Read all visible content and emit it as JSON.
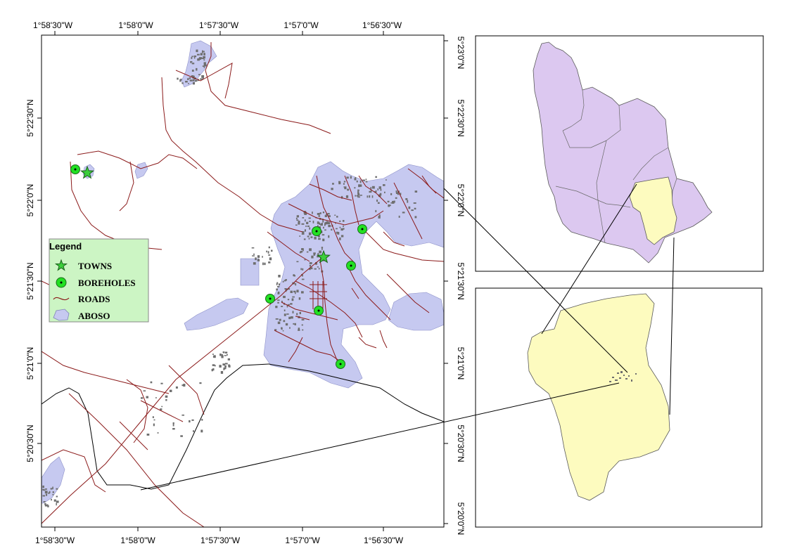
{
  "main_map": {
    "top_ticks": [
      "1°58'30\"W",
      "1°58'0\"W",
      "1°57'30\"W",
      "1°57'0\"W",
      "1°56'30\"W"
    ],
    "bottom_ticks": [
      "1°58'30\"W",
      "1°58'0\"W",
      "1°57'30\"W",
      "1°57'0\"W",
      "1°56'30\"W"
    ],
    "left_ticks": [
      "5°22'30\"N",
      "5°22'0\"N",
      "5°21'30\"N",
      "5°21'0\"N",
      "5°20'30\"N"
    ],
    "right_ticks": [
      "5°23'0\"N",
      "5°22'30\"N",
      "5°22'0\"N",
      "5°21'30\"N",
      "5°21'0\"N",
      "5°20'30\"N",
      "5°20'0\"N"
    ]
  },
  "legend": {
    "title": "Legend",
    "items": [
      {
        "label": "TOWNS",
        "symbol": "star-icon"
      },
      {
        "label": "BOREHOLES",
        "symbol": "borehole-icon"
      },
      {
        "label": "ROADS",
        "symbol": "road-line-icon"
      },
      {
        "label": "ABOSO",
        "symbol": "area-patch-icon"
      }
    ]
  },
  "colors": {
    "aboso_fill": "#c6c9f0",
    "road": "#8b1a1a",
    "borehole_fill": "#22e022",
    "town_fill": "#3ccf3c",
    "legend_bg": "#ccf5c4",
    "region_fill": "#dcc8f0",
    "district_fill": "#fdfbbf",
    "building": "#6e6e6e"
  }
}
